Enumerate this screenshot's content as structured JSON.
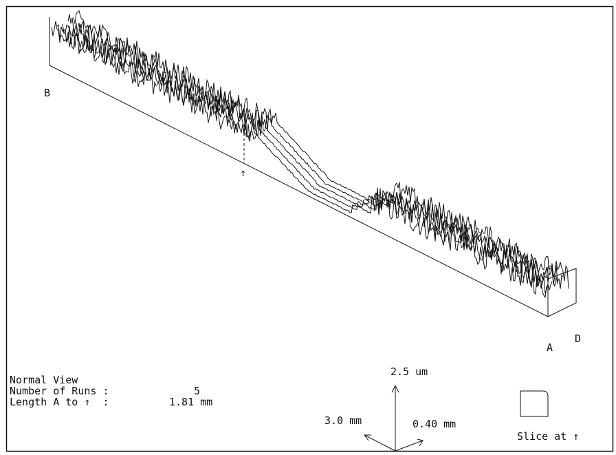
{
  "labels": {
    "corner_b": "B",
    "corner_a": "A",
    "corner_d": "D",
    "slice_marker": "↑"
  },
  "info": {
    "view": "Normal View",
    "runs_label": "Number of Runs :",
    "runs": "5",
    "length_label": "Length A to ↑  :",
    "length": "1.81 mm"
  },
  "axes": {
    "z": "2.5 um",
    "x": "3.0 mm",
    "y": "0.40 mm"
  },
  "slice": {
    "label": "Slice at ↑"
  }
}
